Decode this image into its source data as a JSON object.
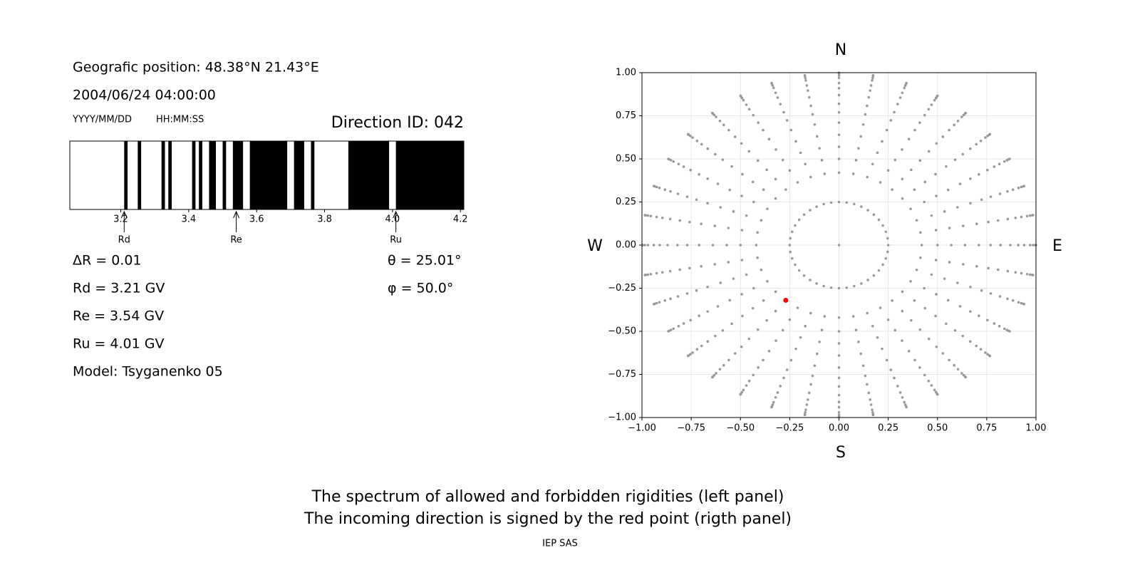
{
  "info": {
    "position": "Geografic position: 48.38°N 21.43°E",
    "datetime": "2004/06/24 04:00:00",
    "date_format": "YYYY/MM/DD",
    "time_format": "HH:MM:SS",
    "direction_id": "Direction ID: 042",
    "params": [
      "ΔR = 0.01",
      "Rd = 3.21 GV",
      "Re = 3.54 GV",
      "Ru = 4.01 GV",
      "Model: Tsyganenko 05"
    ],
    "angles": [
      "θ = 25.01°",
      "φ = 50.0°"
    ]
  },
  "chart_data": [
    {
      "type": "spectrum",
      "xlim": [
        3.05,
        4.21
      ],
      "xticks": [
        3.2,
        3.4,
        3.6,
        3.8,
        {
          "value": 4,
          "label": "4.0"
        },
        4.2
      ],
      "color": "#000000",
      "bands": [
        [
          3.21,
          3.22
        ],
        [
          3.25,
          3.26
        ],
        [
          3.32,
          3.33
        ],
        [
          3.34,
          3.35
        ],
        [
          3.41,
          3.42
        ],
        [
          3.43,
          3.44
        ],
        [
          3.46,
          3.48
        ],
        [
          3.5,
          3.51
        ],
        [
          3.53,
          3.56
        ],
        [
          3.58,
          3.69
        ],
        [
          3.71,
          3.74
        ],
        [
          3.76,
          3.77
        ],
        [
          3.87,
          3.99
        ],
        [
          4.01,
          4.21
        ]
      ],
      "markers": [
        {
          "name": "Rd",
          "value": 3.21
        },
        {
          "name": "Re",
          "value": 3.54
        },
        {
          "name": "Ru",
          "value": 4.01
        }
      ]
    },
    {
      "type": "polar-scatter",
      "xlim": [
        -1,
        1
      ],
      "ylim": [
        -1,
        1
      ],
      "grid": true,
      "xticks": [
        {
          "value": -1,
          "label": "−1.00"
        },
        {
          "value": -0.75,
          "label": "−0.75"
        },
        {
          "value": -0.5,
          "label": "−0.50"
        },
        {
          "value": -0.25,
          "label": "−0.25"
        },
        {
          "value": 0,
          "label": "0.00"
        },
        {
          "value": 0.25,
          "label": "0.25"
        },
        {
          "value": 0.5,
          "label": "0.50"
        },
        {
          "value": 0.75,
          "label": "0.75"
        },
        {
          "value": 1,
          "label": "1.00"
        }
      ],
      "yticks": [
        {
          "value": -1,
          "label": "−1.00"
        },
        {
          "value": -0.75,
          "label": "−0.75"
        },
        {
          "value": -0.5,
          "label": "−0.50"
        },
        {
          "value": -0.25,
          "label": "−0.25"
        },
        {
          "value": 0,
          "label": "0.00"
        },
        {
          "value": 0.25,
          "label": "0.25"
        },
        {
          "value": 0.5,
          "label": "0.50"
        },
        {
          "value": 0.75,
          "label": "0.75"
        },
        {
          "value": 1,
          "label": "1.00"
        }
      ],
      "compass": {
        "north": "N",
        "south": "S",
        "west": "W",
        "east": "E"
      },
      "directions": {
        "color": "#999999",
        "rings": [
          {
            "r": 0,
            "step": 360
          },
          {
            "r": 0.25,
            "step": 9
          },
          {
            "r": 0.42,
            "step": 10
          },
          {
            "r": 0.5,
            "step": 10
          },
          {
            "r": 0.57,
            "step": 10
          },
          {
            "r": 0.64,
            "step": 10
          },
          {
            "r": 0.71,
            "step": 10
          },
          {
            "r": 0.77,
            "step": 10
          },
          {
            "r": 0.82,
            "step": 10
          },
          {
            "r": 0.87,
            "step": 10
          },
          {
            "r": 0.91,
            "step": 10
          },
          {
            "r": 0.94,
            "step": 10
          },
          {
            "r": 0.97,
            "step": 10
          },
          {
            "r": 0.985,
            "step": 10
          },
          {
            "r": 0.996,
            "step": 10
          },
          {
            "r": 1,
            "step": 10
          }
        ]
      },
      "point": {
        "color": "#ff0000",
        "x": -0.27,
        "y": -0.32
      }
    }
  ],
  "footer": {
    "lines": [
      "The spectrum of allowed and forbidden rigidities (left panel)",
      "The incoming direction is signed by the red point (rigth panel)"
    ],
    "credit": "IEP SAS"
  }
}
